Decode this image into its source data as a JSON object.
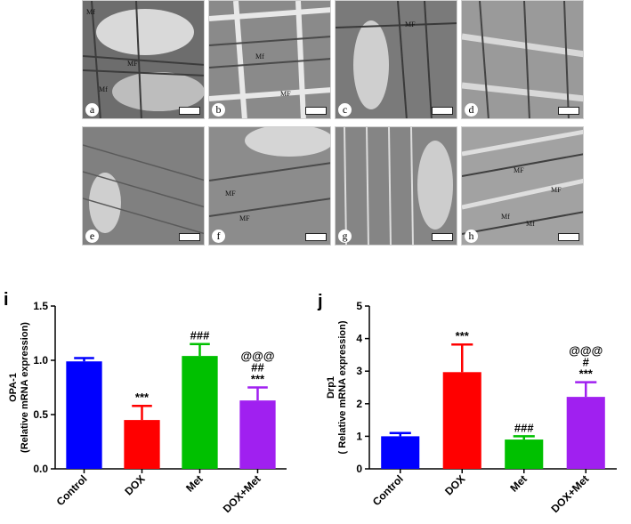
{
  "micrographs": {
    "tiles": [
      {
        "letter": "a",
        "labels": [
          "Mf",
          "MF",
          "Mf"
        ]
      },
      {
        "letter": "b",
        "labels": [
          "Mf",
          "MF"
        ]
      },
      {
        "letter": "c",
        "labels": [
          "MF"
        ]
      },
      {
        "letter": "d",
        "labels": []
      },
      {
        "letter": "e",
        "labels": []
      },
      {
        "letter": "f",
        "labels": [
          "MF",
          "MF"
        ]
      },
      {
        "letter": "g",
        "labels": []
      },
      {
        "letter": "h",
        "labels": [
          "MF",
          "MF",
          "Mf",
          "Mf"
        ]
      }
    ]
  },
  "chart_data": [
    {
      "panel": "i",
      "type": "bar",
      "categories": [
        "Control",
        "DOX",
        "Met",
        "DOX+Met"
      ],
      "values": [
        0.99,
        0.45,
        1.04,
        0.63
      ],
      "errors": [
        0.03,
        0.13,
        0.11,
        0.12
      ],
      "annotations": [
        [],
        [
          "***"
        ],
        [
          "###"
        ],
        [
          "***",
          "##",
          "@@@"
        ]
      ],
      "colors": [
        "#0000ff",
        "#ff0000",
        "#00c000",
        "#a020f0"
      ],
      "ylabel_line1": "OPA-1",
      "ylabel_line2": "(Relative mRNA expression)",
      "ylim": [
        0,
        1.5
      ],
      "yticks": [
        "0.0",
        "0.5",
        "1.0",
        "1.5"
      ],
      "ytick_values": [
        0,
        0.5,
        1.0,
        1.5
      ]
    },
    {
      "panel": "j",
      "type": "bar",
      "categories": [
        "Control",
        "DOX",
        "Met",
        "DOX+Met"
      ],
      "values": [
        1.0,
        2.97,
        0.9,
        2.21
      ],
      "errors": [
        0.1,
        0.85,
        0.1,
        0.45
      ],
      "annotations": [
        [],
        [
          "***"
        ],
        [
          "###"
        ],
        [
          "***",
          "#",
          "@@@"
        ]
      ],
      "colors": [
        "#0000ff",
        "#ff0000",
        "#00c000",
        "#a020f0"
      ],
      "ylabel_line1": "Drp1",
      "ylabel_line2": "( Relative mRNA expression)",
      "ylim": [
        0,
        5
      ],
      "yticks": [
        "0",
        "1",
        "2",
        "3",
        "4",
        "5"
      ],
      "ytick_values": [
        0,
        1,
        2,
        3,
        4,
        5
      ]
    }
  ]
}
